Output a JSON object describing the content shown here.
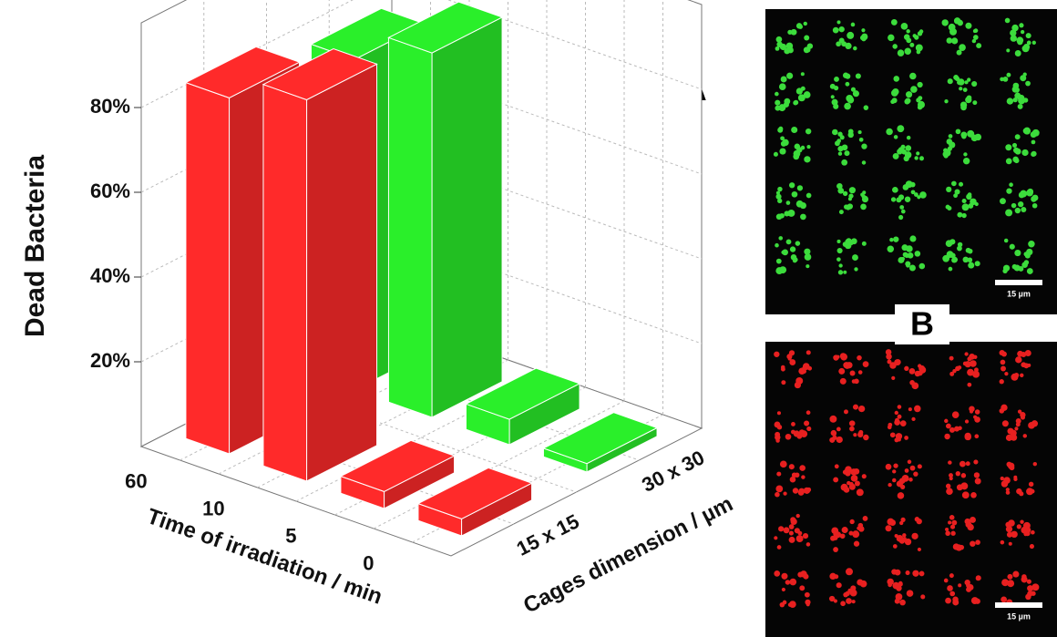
{
  "chart_data": {
    "type": "bar3d",
    "y_label": "Dead Bacteria",
    "x_label": "Time of irradiation / min",
    "z_label": "Cages dimension / µm",
    "annotation": "A",
    "categories": [
      "60",
      "10",
      "5",
      "0"
    ],
    "series": [
      {
        "name": "15 x 15",
        "color": "#ff2a2a",
        "values": [
          84,
          90,
          4,
          4
        ]
      },
      {
        "name": "30 x 30",
        "color": "#2aef2a",
        "values": [
          78,
          86,
          6,
          2
        ]
      }
    ],
    "ylim": [
      0,
      100
    ],
    "yticks": [
      {
        "value": 20,
        "label": "20%"
      },
      {
        "value": 40,
        "label": "40%"
      },
      {
        "value": 60,
        "label": "60%"
      },
      {
        "value": 80,
        "label": "80%"
      }
    ],
    "grid": true
  },
  "panel_b": {
    "label": "B",
    "scale_bar": "15 µm",
    "top_color": "#3cdc3c",
    "bottom_color": "#e82020"
  }
}
